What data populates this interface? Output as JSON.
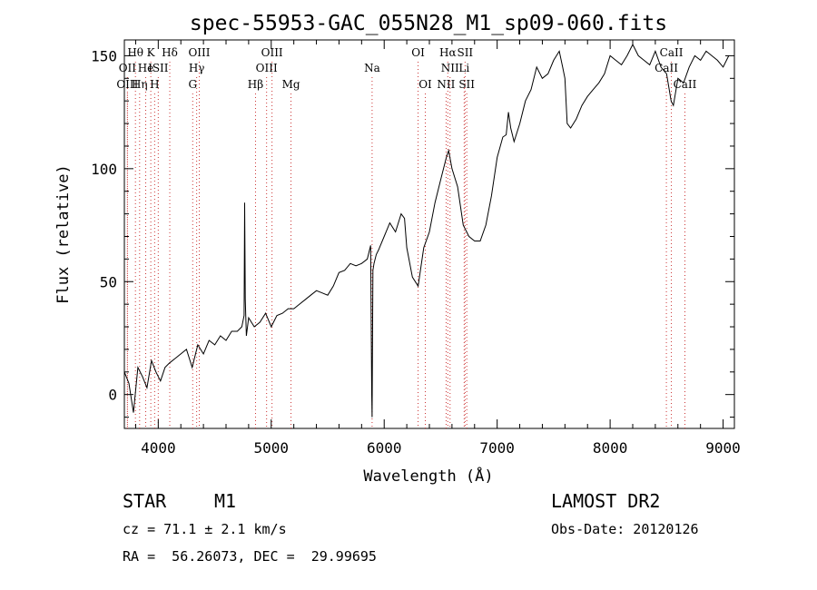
{
  "chart_data": {
    "type": "line",
    "title": "spec-55953-GAC_055N28_M1_sp09-060.fits",
    "xlabel": "Wavelength (Å)",
    "ylabel": "Flux (relative)",
    "xlim": [
      3700,
      9100
    ],
    "ylim": [
      -15,
      157
    ],
    "x_ticks": [
      4000,
      5000,
      6000,
      7000,
      8000,
      9000
    ],
    "y_ticks": [
      0,
      50,
      100,
      150
    ],
    "grid": false,
    "series": [
      {
        "x": [
          3700,
          3740,
          3780,
          3820,
          3860,
          3900,
          3940,
          3980,
          4020,
          4060,
          4100,
          4150,
          4200,
          4250,
          4300,
          4350,
          4400,
          4450,
          4500,
          4550,
          4600,
          4650,
          4700,
          4740,
          4760,
          4765,
          4770,
          4780,
          4800,
          4850,
          4900,
          4950,
          5000,
          5050,
          5100,
          5150,
          5200,
          5250,
          5300,
          5350,
          5400,
          5450,
          5500,
          5550,
          5600,
          5650,
          5700,
          5750,
          5800,
          5850,
          5880,
          5890,
          5893,
          5900,
          5910,
          5930,
          5950,
          6000,
          6050,
          6100,
          6150,
          6180,
          6200,
          6250,
          6300,
          6350,
          6400,
          6450,
          6500,
          6550,
          6570,
          6600,
          6650,
          6700,
          6750,
          6800,
          6850,
          6900,
          6950,
          7000,
          7050,
          7080,
          7100,
          7120,
          7150,
          7200,
          7250,
          7300,
          7350,
          7400,
          7450,
          7500,
          7550,
          7580,
          7600,
          7620,
          7650,
          7700,
          7750,
          7800,
          7850,
          7900,
          7950,
          8000,
          8050,
          8100,
          8150,
          8200,
          8250,
          8300,
          8350,
          8400,
          8450,
          8500,
          8540,
          8560,
          8600,
          8650,
          8700,
          8750,
          8800,
          8850,
          8900,
          8950,
          9000,
          9050
        ],
        "y": [
          10,
          5,
          -8,
          12,
          8,
          3,
          15,
          10,
          6,
          12,
          14,
          16,
          18,
          20,
          12,
          22,
          18,
          24,
          22,
          26,
          24,
          28,
          28,
          30,
          35,
          85,
          42,
          26,
          34,
          30,
          32,
          36,
          30,
          35,
          36,
          38,
          38,
          40,
          42,
          44,
          46,
          45,
          44,
          48,
          54,
          55,
          58,
          57,
          58,
          60,
          66,
          0,
          -10,
          55,
          58,
          62,
          64,
          70,
          76,
          72,
          80,
          78,
          65,
          52,
          48,
          65,
          72,
          85,
          95,
          105,
          108,
          100,
          92,
          75,
          70,
          68,
          68,
          75,
          88,
          105,
          114,
          115,
          125,
          118,
          112,
          120,
          130,
          135,
          145,
          140,
          142,
          148,
          152,
          145,
          140,
          120,
          118,
          122,
          128,
          132,
          135,
          138,
          142,
          150,
          148,
          146,
          150,
          155,
          150,
          148,
          146,
          152,
          145,
          142,
          130,
          128,
          140,
          138,
          145,
          150,
          148,
          152,
          150,
          148,
          145,
          150
        ]
      }
    ],
    "line_markers": [
      {
        "label": "Hθ",
        "x": 3798,
        "row": 1
      },
      {
        "label": "OII",
        "x": 3727,
        "row": 2
      },
      {
        "label": "OIII",
        "x": 3727,
        "row": 3
      },
      {
        "label": "K",
        "x": 3934,
        "row": 1
      },
      {
        "label": "He",
        "x": 3889,
        "row": 2
      },
      {
        "label": "Hη",
        "x": 3835,
        "row": 3
      },
      {
        "label": "Hδ",
        "x": 4102,
        "row": 1
      },
      {
        "label": "ISII",
        "x": 4000,
        "row": 2
      },
      {
        "label": "H",
        "x": 3968,
        "row": 3
      },
      {
        "label": "OIII",
        "x": 4363,
        "row": 1
      },
      {
        "label": "Hγ",
        "x": 4340,
        "row": 2
      },
      {
        "label": "G",
        "x": 4305,
        "row": 3
      },
      {
        "label": "OIII",
        "x": 5007,
        "row": 1
      },
      {
        "label": "OIII",
        "x": 4959,
        "row": 2
      },
      {
        "label": "Hβ",
        "x": 4861,
        "row": 3
      },
      {
        "label": "Mg",
        "x": 5175,
        "row": 3
      },
      {
        "label": "Na",
        "x": 5893,
        "row": 2
      },
      {
        "label": "OI",
        "x": 6300,
        "row": 1
      },
      {
        "label": "OI",
        "x": 6364,
        "row": 3
      },
      {
        "label": "Hα",
        "x": 6563,
        "row": 1
      },
      {
        "label": "SII",
        "x": 6716,
        "row": 1
      },
      {
        "label": "NII",
        "x": 6583,
        "row": 2
      },
      {
        "label": "Li",
        "x": 6708,
        "row": 2
      },
      {
        "label": "NII",
        "x": 6548,
        "row": 3
      },
      {
        "label": "SII",
        "x": 6731,
        "row": 3
      },
      {
        "label": "CaII",
        "x": 8542,
        "row": 1
      },
      {
        "label": "CaII",
        "x": 8498,
        "row": 2
      },
      {
        "label": "CaII",
        "x": 8662,
        "row": 3
      }
    ]
  },
  "info": {
    "object_type": "STAR",
    "subclass": "M1",
    "survey": "LAMOST DR2",
    "cz": "cz = 71.1 ± 2.1 km/s",
    "obs_date": "Obs-Date: 20120126",
    "coords": "RA =  56.26073, DEC =  29.99695"
  }
}
